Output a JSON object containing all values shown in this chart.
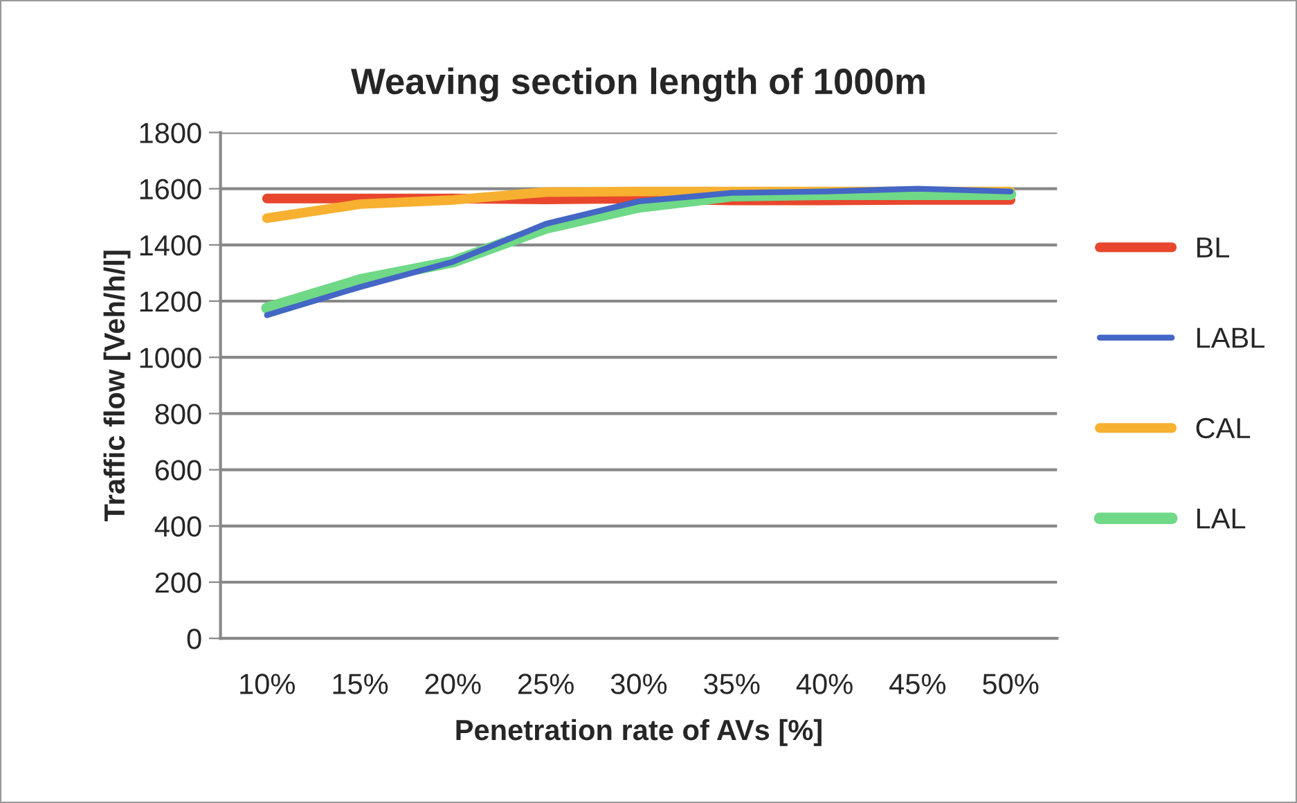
{
  "chart_data": {
    "type": "line",
    "title": "Weaving section length of 1000m",
    "xlabel": "Penetration rate of AVs [%]",
    "ylabel": "Traffic flow [Veh/h/l]",
    "categories": [
      "10%",
      "15%",
      "20%",
      "25%",
      "30%",
      "35%",
      "40%",
      "45%",
      "50%"
    ],
    "series": [
      {
        "name": "BL",
        "color": "#e8472e",
        "values": [
          1565,
          1565,
          1565,
          1562,
          1565,
          1558,
          1558,
          1560,
          1560
        ]
      },
      {
        "name": "LABL",
        "color": "#4466c4",
        "values": [
          1150,
          1250,
          1340,
          1475,
          1555,
          1585,
          1590,
          1600,
          1590
        ]
      },
      {
        "name": "CAL",
        "color": "#f7b030",
        "values": [
          1495,
          1545,
          1560,
          1588,
          1590,
          1590,
          1590,
          1590,
          1590
        ]
      },
      {
        "name": "LAL",
        "color": "#6fd987",
        "values": [
          1175,
          1275,
          1340,
          1460,
          1535,
          1575,
          1580,
          1580,
          1580
        ]
      }
    ],
    "ylim": [
      0,
      1800
    ],
    "yticks": [
      0,
      200,
      400,
      600,
      800,
      1000,
      1200,
      1400,
      1600,
      1800
    ],
    "grid": "y",
    "legend": "right",
    "marker": "none",
    "line_style": "solid"
  }
}
